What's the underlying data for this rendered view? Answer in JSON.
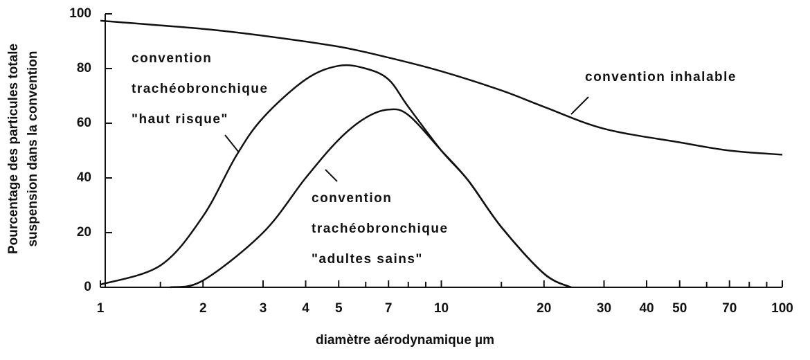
{
  "chart_data": {
    "type": "line",
    "xlabel": "diamètre aérodynamique µm",
    "ylabel": [
      "Pourcentage des particules totale",
      "suspension dans la convention"
    ],
    "xscale": "log",
    "xlim": [
      1,
      100
    ],
    "ylim": [
      0,
      100
    ],
    "xticks": [
      1,
      2,
      3,
      4,
      5,
      7,
      10,
      20,
      30,
      40,
      50,
      70,
      100
    ],
    "xminor": [
      1.5,
      6,
      8,
      9,
      15,
      60,
      80,
      90
    ],
    "yticks": [
      0,
      20,
      40,
      60,
      80,
      100
    ],
    "color": "#111111",
    "series": [
      {
        "x": [
          1,
          2,
          3,
          5,
          7,
          10,
          15,
          20,
          30,
          50,
          70,
          100
        ],
        "values": [
          97.5,
          94.5,
          92,
          88,
          84,
          79,
          72,
          66,
          58,
          53,
          50,
          48.5
        ]
      },
      {
        "x": [
          1,
          1.5,
          2,
          2.5,
          3,
          4,
          5,
          6,
          7,
          8,
          10,
          12,
          15,
          20,
          24
        ],
        "values": [
          1,
          8,
          26,
          48,
          62,
          76,
          81,
          80,
          76,
          66,
          50,
          39,
          22,
          5,
          0
        ]
      },
      {
        "x": [
          1.6,
          2,
          3,
          4,
          5,
          6,
          7,
          8,
          10,
          12,
          15,
          20,
          24
        ],
        "values": [
          0,
          2.5,
          20,
          40,
          54,
          62,
          65,
          63,
          50,
          39,
          22,
          5,
          0
        ]
      }
    ],
    "annotations": [
      {
        "lines": [
          "convention",
          "trachéobronchique",
          "\"haut risque\""
        ]
      },
      {
        "lines": [
          "convention",
          "trachéobronchique",
          "\"adultes sains\""
        ]
      },
      {
        "lines": [
          "convention inhalable"
        ]
      }
    ]
  }
}
